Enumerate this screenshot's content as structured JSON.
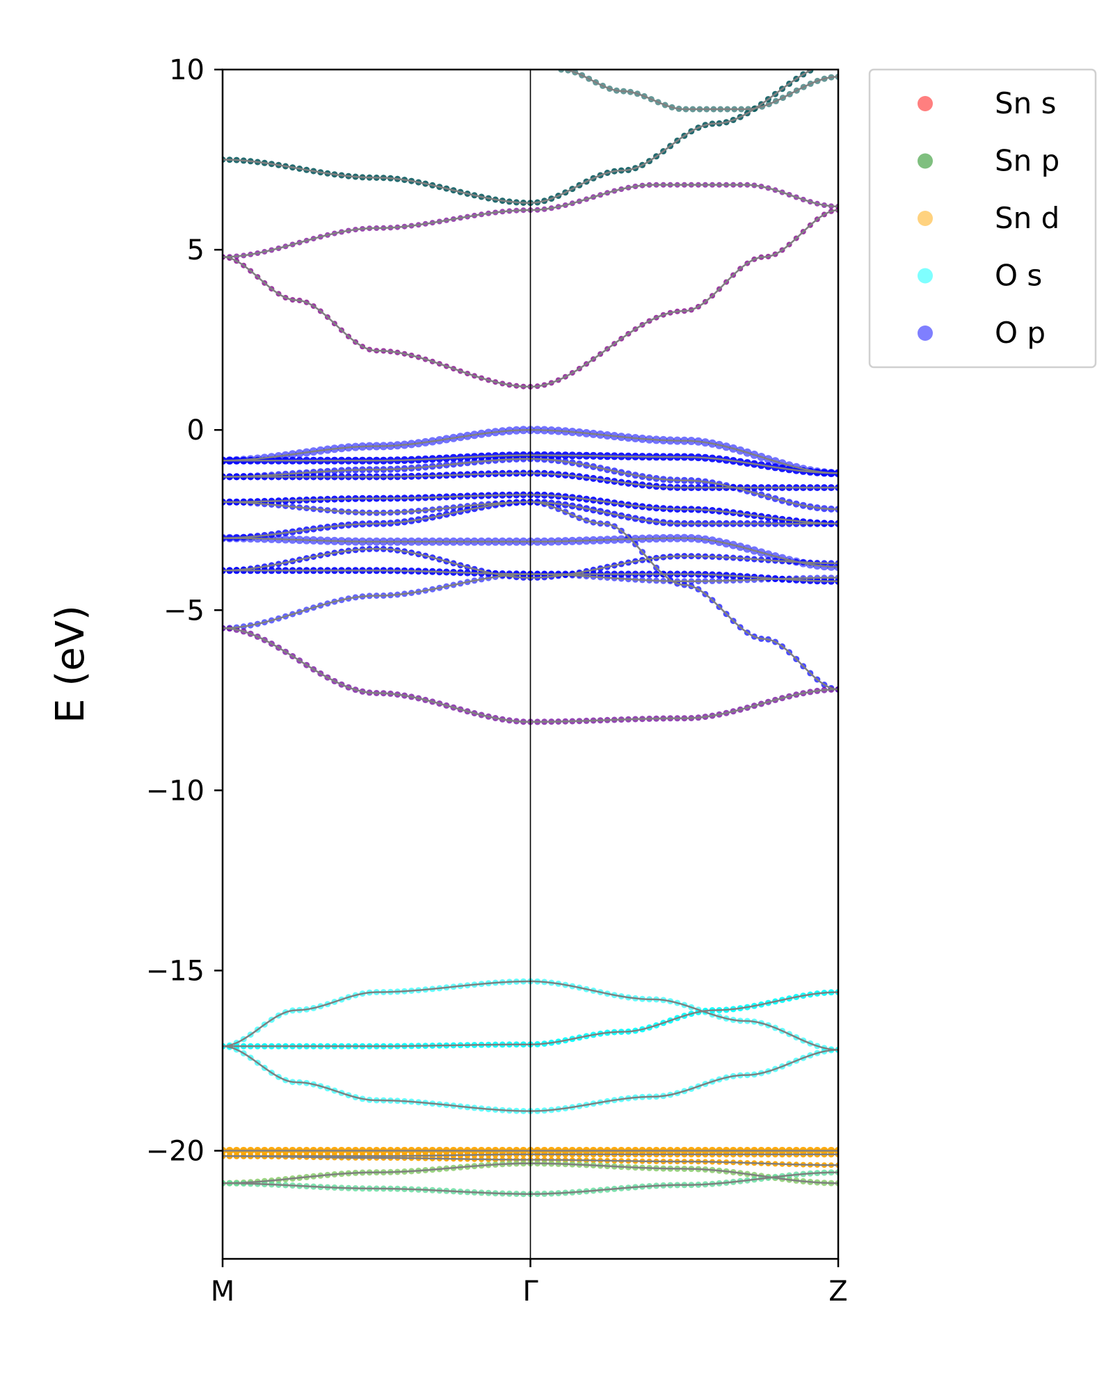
{
  "chart_data": {
    "type": "scatter",
    "title": "",
    "xlabel": "",
    "ylabel": "E (eV)",
    "ylim": [
      -23,
      10
    ],
    "yticks": [
      10,
      5,
      0,
      -5,
      -10,
      -15,
      -20
    ],
    "ytick_labels": [
      "10",
      "5",
      "0",
      "−5",
      "−10",
      "−15",
      "−20"
    ],
    "kpoints": [
      {
        "label": "M",
        "x": 0.0
      },
      {
        "label": "Γ",
        "x": 0.5
      },
      {
        "label": "Z",
        "x": 1.0
      }
    ],
    "legend": {
      "placement": "outside-top-right",
      "entries": [
        {
          "name": "Sn s",
          "color": "#ff0000"
        },
        {
          "name": "Sn p",
          "color": "#008000"
        },
        {
          "name": "Sn d",
          "color": "#ffa500"
        },
        {
          "name": "O s",
          "color": "#00ffff"
        },
        {
          "name": "O p",
          "color": "#0000ff"
        }
      ]
    },
    "line_color": "#808080",
    "bands": [
      {
        "name": "Sn-d-1",
        "points": [
          [
            0,
            -20.0
          ],
          [
            0.25,
            -20.0
          ],
          [
            0.5,
            -20.0
          ],
          [
            0.75,
            -20.0
          ],
          [
            1.0,
            -20.0
          ]
        ],
        "size": 11,
        "orbitals": {
          "Sn d": 0.95
        }
      },
      {
        "name": "Sn-d-2",
        "points": [
          [
            0,
            -20.15
          ],
          [
            0.25,
            -20.15
          ],
          [
            0.5,
            -20.1
          ],
          [
            0.75,
            -20.1
          ],
          [
            1.0,
            -20.1
          ]
        ],
        "size": 9,
        "orbitals": {
          "Sn d": 0.95
        }
      },
      {
        "name": "Sn-d-3",
        "points": [
          [
            0,
            -20.15
          ],
          [
            0.25,
            -20.2
          ],
          [
            0.5,
            -20.25
          ],
          [
            0.75,
            -20.3
          ],
          [
            1.0,
            -20.4
          ]
        ],
        "size": 8,
        "orbitals": {
          "Sn d": 0.95
        }
      },
      {
        "name": "Sn-d-4",
        "points": [
          [
            0,
            -20.9
          ],
          [
            0.25,
            -20.6
          ],
          [
            0.5,
            -20.35
          ],
          [
            0.75,
            -20.5
          ],
          [
            1.0,
            -20.9
          ]
        ],
        "size": 9,
        "orbitals": {
          "Sn d": 0.8,
          "O s": 0.4
        }
      },
      {
        "name": "Sn-d-5",
        "points": [
          [
            0,
            -20.9
          ],
          [
            0.25,
            -21.05
          ],
          [
            0.5,
            -21.2
          ],
          [
            0.75,
            -20.95
          ],
          [
            1.0,
            -20.6
          ]
        ],
        "size": 9,
        "orbitals": {
          "Sn d": 0.6,
          "O s": 0.5
        }
      },
      {
        "name": "O-s-1",
        "points": [
          [
            0,
            -17.1
          ],
          [
            0.12,
            -16.1
          ],
          [
            0.25,
            -15.6
          ],
          [
            0.5,
            -15.3
          ],
          [
            0.7,
            -15.8
          ],
          [
            0.85,
            -16.4
          ],
          [
            1.0,
            -17.2
          ]
        ],
        "size": 9,
        "orbitals": {
          "O s": 0.6
        }
      },
      {
        "name": "O-s-2",
        "points": [
          [
            0,
            -17.1
          ],
          [
            0.25,
            -17.1
          ],
          [
            0.5,
            -17.05
          ],
          [
            0.65,
            -16.7
          ],
          [
            0.8,
            -16.1
          ],
          [
            1.0,
            -15.6
          ]
        ],
        "size": 9,
        "orbitals": {
          "O s": 0.9
        }
      },
      {
        "name": "O-s-3",
        "points": [
          [
            0,
            -17.1
          ],
          [
            0.12,
            -18.1
          ],
          [
            0.25,
            -18.6
          ],
          [
            0.5,
            -18.9
          ],
          [
            0.7,
            -18.5
          ],
          [
            0.85,
            -17.9
          ],
          [
            1.0,
            -17.2
          ]
        ],
        "size": 9,
        "orbitals": {
          "O s": 0.6
        }
      },
      {
        "name": "O-p-1",
        "points": [
          [
            0,
            -0.85
          ],
          [
            0.25,
            -0.45
          ],
          [
            0.5,
            0.0
          ],
          [
            0.75,
            -0.3
          ],
          [
            1.0,
            -1.2
          ]
        ],
        "size": 12,
        "orbitals": {
          "O p": 0.55
        }
      },
      {
        "name": "O-p-2",
        "points": [
          [
            0,
            -0.85
          ],
          [
            0.25,
            -0.85
          ],
          [
            0.5,
            -0.7
          ],
          [
            0.75,
            -0.75
          ],
          [
            1.0,
            -1.2
          ]
        ],
        "size": 11,
        "orbitals": {
          "O p": 0.9
        }
      },
      {
        "name": "O-p-3",
        "points": [
          [
            0,
            -1.3
          ],
          [
            0.25,
            -1.3
          ],
          [
            0.5,
            -1.2
          ],
          [
            0.75,
            -1.6
          ],
          [
            1.0,
            -1.6
          ]
        ],
        "size": 10,
        "orbitals": {
          "O p": 0.9
        }
      },
      {
        "name": "O-p-4",
        "points": [
          [
            0,
            -1.3
          ],
          [
            0.25,
            -1.1
          ],
          [
            0.5,
            -0.8
          ],
          [
            0.75,
            -1.4
          ],
          [
            1.0,
            -2.2
          ]
        ],
        "size": 10,
        "orbitals": {
          "O p": 0.7
        }
      },
      {
        "name": "O-p-5",
        "points": [
          [
            0,
            -2.0
          ],
          [
            0.25,
            -1.9
          ],
          [
            0.5,
            -1.8
          ],
          [
            0.75,
            -2.2
          ],
          [
            1.0,
            -2.6
          ]
        ],
        "size": 10,
        "orbitals": {
          "O p": 0.9
        }
      },
      {
        "name": "O-p-6",
        "points": [
          [
            0,
            -2.0
          ],
          [
            0.25,
            -2.3
          ],
          [
            0.5,
            -2.0
          ],
          [
            0.62,
            -2.6
          ],
          [
            0.75,
            -4.3
          ],
          [
            0.88,
            -5.8
          ],
          [
            1.0,
            -7.2
          ]
        ],
        "size": 9,
        "orbitals": {
          "O p": 0.7
        }
      },
      {
        "name": "O-p-7",
        "points": [
          [
            0,
            -3.0
          ],
          [
            0.25,
            -2.6
          ],
          [
            0.5,
            -2.0
          ],
          [
            0.75,
            -2.6
          ],
          [
            1.0,
            -2.6
          ]
        ],
        "size": 10,
        "orbitals": {
          "O p": 0.8
        }
      },
      {
        "name": "O-p-8",
        "points": [
          [
            0,
            -3.0
          ],
          [
            0.25,
            -3.1
          ],
          [
            0.5,
            -3.1
          ],
          [
            0.75,
            -3.0
          ],
          [
            1.0,
            -3.8
          ]
        ],
        "size": 12,
        "orbitals": {
          "O p": 0.55
        }
      },
      {
        "name": "O-p-9",
        "points": [
          [
            0,
            -3.9
          ],
          [
            0.25,
            -3.9
          ],
          [
            0.5,
            -4.0
          ],
          [
            0.75,
            -4.0
          ],
          [
            1.0,
            -4.2
          ]
        ],
        "size": 10,
        "orbitals": {
          "O p": 0.9
        }
      },
      {
        "name": "O-p-10",
        "points": [
          [
            0,
            -3.9
          ],
          [
            0.25,
            -3.3
          ],
          [
            0.5,
            -4.1
          ],
          [
            0.75,
            -3.5
          ],
          [
            1.0,
            -3.7
          ]
        ],
        "size": 9,
        "orbitals": {
          "O p": 0.8
        }
      },
      {
        "name": "O-p-11",
        "points": [
          [
            0,
            -5.5
          ],
          [
            0.25,
            -4.6
          ],
          [
            0.5,
            -4.0
          ],
          [
            0.75,
            -4.2
          ],
          [
            1.0,
            -4.1
          ]
        ],
        "size": 9,
        "orbitals": {
          "O p": 0.6
        }
      },
      {
        "name": "O-p-12",
        "points": [
          [
            0,
            -5.5
          ],
          [
            0.25,
            -7.3
          ],
          [
            0.5,
            -8.1
          ],
          [
            0.75,
            -8.0
          ],
          [
            1.0,
            -7.2
          ]
        ],
        "size": 9,
        "orbitals": {
          "O p": 0.6,
          "Sn s": 0.3
        }
      },
      {
        "name": "CB-1",
        "points": [
          [
            0,
            4.8
          ],
          [
            0.12,
            3.6
          ],
          [
            0.25,
            2.2
          ],
          [
            0.5,
            1.2
          ],
          [
            0.75,
            3.3
          ],
          [
            0.88,
            4.8
          ],
          [
            1.0,
            6.1
          ]
        ],
        "size": 8,
        "orbitals": {
          "Sn s": 0.6,
          "O p": 0.4
        }
      },
      {
        "name": "CB-2",
        "points": [
          [
            0,
            4.8
          ],
          [
            0.25,
            5.6
          ],
          [
            0.5,
            6.1
          ],
          [
            0.7,
            6.8
          ],
          [
            0.85,
            6.8
          ],
          [
            1.0,
            6.2
          ]
        ],
        "size": 8,
        "orbitals": {
          "Sn s": 0.5,
          "O p": 0.4
        }
      },
      {
        "name": "CB-3",
        "points": [
          [
            0,
            7.5
          ],
          [
            0.25,
            7.0
          ],
          [
            0.5,
            6.3
          ],
          [
            0.65,
            7.2
          ],
          [
            0.8,
            8.5
          ],
          [
            1.0,
            10.2
          ]
        ],
        "size": 9,
        "orbitals": {
          "Sn p": 0.8,
          "O p": 0.3
        }
      },
      {
        "name": "CB-4",
        "points": [
          [
            0.55,
            10.0
          ],
          [
            0.65,
            9.4
          ],
          [
            0.75,
            8.9
          ],
          [
            0.85,
            8.9
          ],
          [
            1.0,
            9.8
          ]
        ],
        "size": 9,
        "orbitals": {
          "Sn p": 0.5,
          "O p": 0.2
        }
      }
    ]
  }
}
